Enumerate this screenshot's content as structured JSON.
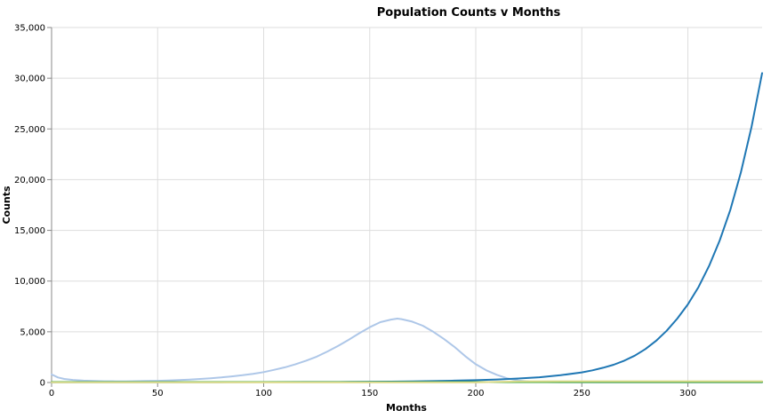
{
  "chart_data": {
    "type": "line",
    "title": "Population Counts v Months",
    "xlabel": "Months",
    "ylabel": "Counts",
    "xlim": [
      0,
      335
    ],
    "ylim": [
      0,
      35000
    ],
    "x_ticks": [
      0,
      50,
      100,
      150,
      200,
      250,
      300
    ],
    "y_ticks": [
      0,
      5000,
      10000,
      15000,
      20000,
      25000,
      30000,
      35000
    ],
    "grid": true,
    "legend": "none",
    "series": [
      {
        "color": "#aec7e8",
        "points": [
          [
            0,
            800
          ],
          [
            3,
            500
          ],
          [
            6,
            350
          ],
          [
            10,
            250
          ],
          [
            15,
            180
          ],
          [
            20,
            150
          ],
          [
            25,
            120
          ],
          [
            30,
            110
          ],
          [
            35,
            110
          ],
          [
            40,
            130
          ],
          [
            45,
            150
          ],
          [
            50,
            170
          ],
          [
            55,
            200
          ],
          [
            60,
            240
          ],
          [
            65,
            290
          ],
          [
            70,
            350
          ],
          [
            75,
            420
          ],
          [
            80,
            500
          ],
          [
            85,
            600
          ],
          [
            90,
            720
          ],
          [
            95,
            860
          ],
          [
            100,
            1020
          ],
          [
            105,
            1250
          ],
          [
            110,
            1500
          ],
          [
            115,
            1800
          ],
          [
            120,
            2150
          ],
          [
            125,
            2550
          ],
          [
            130,
            3050
          ],
          [
            135,
            3600
          ],
          [
            140,
            4200
          ],
          [
            145,
            4850
          ],
          [
            150,
            5450
          ],
          [
            155,
            5950
          ],
          [
            160,
            6200
          ],
          [
            163,
            6300
          ],
          [
            165,
            6250
          ],
          [
            170,
            6000
          ],
          [
            175,
            5600
          ],
          [
            180,
            5000
          ],
          [
            185,
            4300
          ],
          [
            190,
            3500
          ],
          [
            195,
            2600
          ],
          [
            200,
            1800
          ],
          [
            205,
            1200
          ],
          [
            210,
            750
          ],
          [
            215,
            400
          ],
          [
            220,
            200
          ],
          [
            225,
            100
          ],
          [
            230,
            50
          ],
          [
            240,
            20
          ],
          [
            260,
            10
          ],
          [
            335,
            5
          ]
        ]
      },
      {
        "color": "#1f77b4",
        "points": [
          [
            0,
            10
          ],
          [
            20,
            15
          ],
          [
            40,
            20
          ],
          [
            60,
            25
          ],
          [
            80,
            30
          ],
          [
            100,
            40
          ],
          [
            120,
            50
          ],
          [
            140,
            65
          ],
          [
            160,
            90
          ],
          [
            170,
            110
          ],
          [
            180,
            140
          ],
          [
            190,
            180
          ],
          [
            200,
            230
          ],
          [
            210,
            300
          ],
          [
            220,
            390
          ],
          [
            230,
            520
          ],
          [
            240,
            720
          ],
          [
            250,
            1000
          ],
          [
            255,
            1200
          ],
          [
            260,
            1450
          ],
          [
            265,
            1750
          ],
          [
            270,
            2150
          ],
          [
            275,
            2650
          ],
          [
            280,
            3300
          ],
          [
            285,
            4100
          ],
          [
            290,
            5100
          ],
          [
            295,
            6300
          ],
          [
            300,
            7700
          ],
          [
            305,
            9400
          ],
          [
            310,
            11500
          ],
          [
            315,
            14000
          ],
          [
            320,
            17000
          ],
          [
            325,
            20700
          ],
          [
            330,
            25200
          ],
          [
            335,
            30500
          ]
        ]
      },
      {
        "color": "#2ca02c",
        "points": [
          [
            0,
            40
          ],
          [
            50,
            40
          ],
          [
            100,
            40
          ],
          [
            150,
            40
          ],
          [
            200,
            40
          ],
          [
            250,
            40
          ],
          [
            300,
            40
          ],
          [
            335,
            40
          ]
        ]
      },
      {
        "color": "#dbdb8d",
        "points": [
          [
            0,
            5
          ],
          [
            200,
            10
          ],
          [
            210,
            60
          ],
          [
            220,
            110
          ],
          [
            240,
            120
          ],
          [
            280,
            120
          ],
          [
            335,
            120
          ]
        ]
      }
    ]
  }
}
